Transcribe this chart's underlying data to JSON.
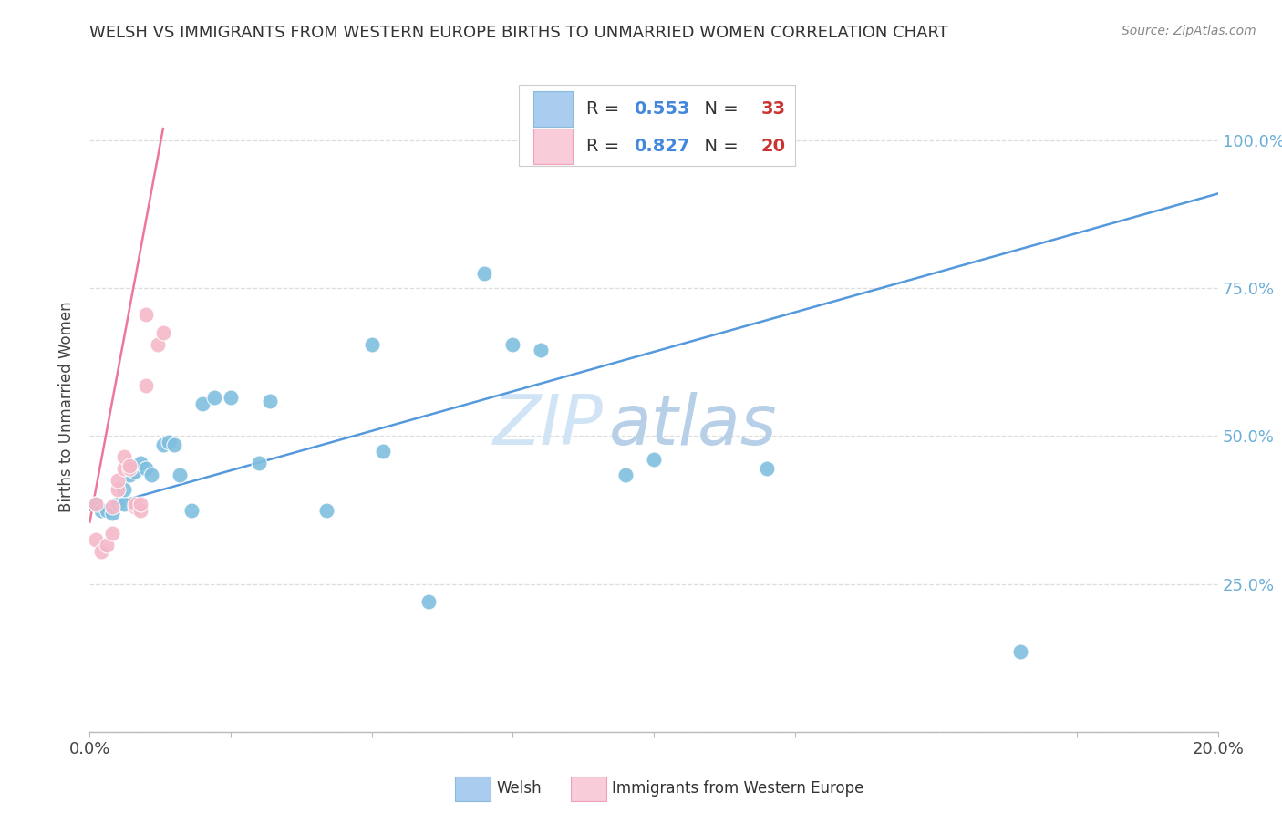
{
  "title": "WELSH VS IMMIGRANTS FROM WESTERN EUROPE BIRTHS TO UNMARRIED WOMEN CORRELATION CHART",
  "source": "Source: ZipAtlas.com",
  "ylabel": "Births to Unmarried Women",
  "xlim": [
    0.0,
    0.2
  ],
  "ylim": [
    0.0,
    1.1
  ],
  "x_ticks": [
    0.0,
    0.025,
    0.05,
    0.075,
    0.1,
    0.125,
    0.15,
    0.175,
    0.2
  ],
  "y_ticks": [
    0.0,
    0.25,
    0.5,
    0.75,
    1.0
  ],
  "y_tick_labels": [
    "",
    "25.0%",
    "50.0%",
    "75.0%",
    "100.0%"
  ],
  "welsh_R": 0.553,
  "welsh_N": 33,
  "imm_R": 0.827,
  "imm_N": 20,
  "welsh_color": "#7fbfdf",
  "imm_color": "#f5b8c8",
  "welsh_line_color": "#5599dd",
  "imm_line_color": "#ee7799",
  "background_color": "#ffffff",
  "watermark_color": "#d0e4f5",
  "legend_welsh_color": "#aaccee",
  "legend_imm_color": "#f8ccd8",
  "welsh_line_x": [
    0.0,
    0.2
  ],
  "welsh_line_y": [
    0.375,
    0.91
  ],
  "imm_line_x": [
    0.0,
    0.013
  ],
  "imm_line_y": [
    0.355,
    1.02
  ],
  "welsh_points": [
    [
      0.001,
      0.385
    ],
    [
      0.002,
      0.375
    ],
    [
      0.003,
      0.375
    ],
    [
      0.004,
      0.37
    ],
    [
      0.005,
      0.385
    ],
    [
      0.006,
      0.385
    ],
    [
      0.006,
      0.41
    ],
    [
      0.007,
      0.435
    ],
    [
      0.008,
      0.44
    ],
    [
      0.009,
      0.455
    ],
    [
      0.01,
      0.445
    ],
    [
      0.011,
      0.435
    ],
    [
      0.013,
      0.485
    ],
    [
      0.014,
      0.49
    ],
    [
      0.015,
      0.485
    ],
    [
      0.016,
      0.435
    ],
    [
      0.018,
      0.375
    ],
    [
      0.02,
      0.555
    ],
    [
      0.022,
      0.565
    ],
    [
      0.025,
      0.565
    ],
    [
      0.03,
      0.455
    ],
    [
      0.032,
      0.56
    ],
    [
      0.042,
      0.375
    ],
    [
      0.05,
      0.655
    ],
    [
      0.052,
      0.475
    ],
    [
      0.06,
      0.22
    ],
    [
      0.07,
      0.775
    ],
    [
      0.075,
      0.655
    ],
    [
      0.08,
      0.645
    ],
    [
      0.095,
      0.435
    ],
    [
      0.1,
      0.46
    ],
    [
      0.12,
      0.445
    ],
    [
      0.165,
      0.135
    ]
  ],
  "imm_points": [
    [
      0.001,
      0.385
    ],
    [
      0.001,
      0.325
    ],
    [
      0.002,
      0.305
    ],
    [
      0.003,
      0.315
    ],
    [
      0.004,
      0.335
    ],
    [
      0.004,
      0.38
    ],
    [
      0.005,
      0.41
    ],
    [
      0.005,
      0.425
    ],
    [
      0.006,
      0.445
    ],
    [
      0.006,
      0.465
    ],
    [
      0.007,
      0.445
    ],
    [
      0.007,
      0.45
    ],
    [
      0.008,
      0.38
    ],
    [
      0.008,
      0.385
    ],
    [
      0.009,
      0.375
    ],
    [
      0.009,
      0.385
    ],
    [
      0.01,
      0.585
    ],
    [
      0.01,
      0.705
    ],
    [
      0.012,
      0.655
    ],
    [
      0.013,
      0.675
    ]
  ]
}
